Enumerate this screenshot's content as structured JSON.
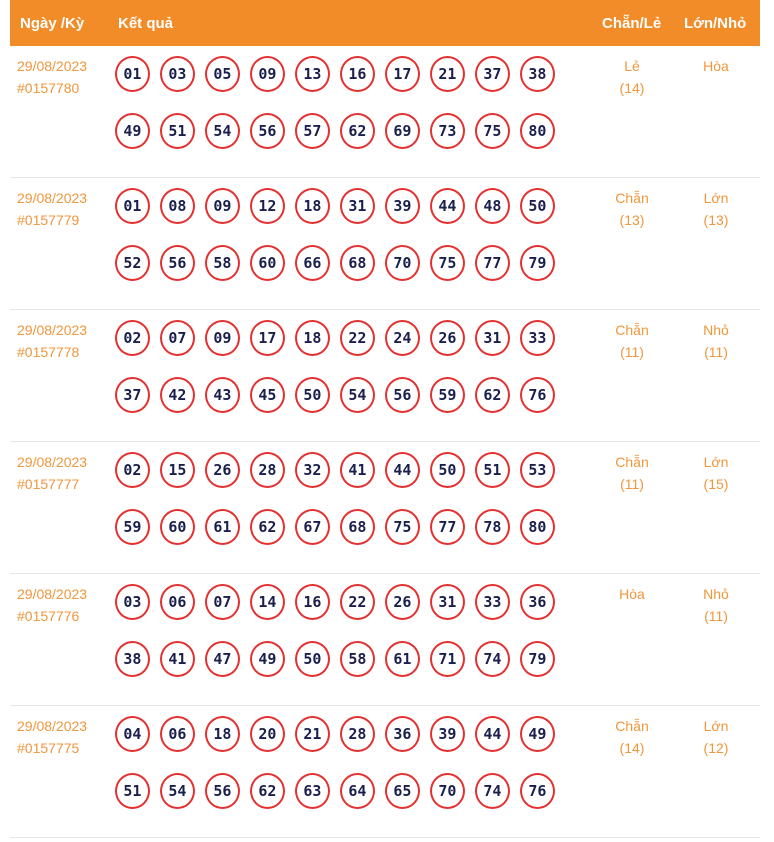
{
  "header": {
    "date_col": "Ngày /Kỳ",
    "result_col": "Kết quả",
    "chanle_col": "Chẵn/Lẻ",
    "lonnho_col": "Lớn/Nhỏ"
  },
  "rows": [
    {
      "date": "29/08/2023",
      "draw": "#0157780",
      "numbers": [
        "01",
        "03",
        "05",
        "09",
        "13",
        "16",
        "17",
        "21",
        "37",
        "38",
        "49",
        "51",
        "54",
        "56",
        "57",
        "62",
        "69",
        "73",
        "75",
        "80"
      ],
      "chanle": "Lẻ",
      "chanle_count": "(14)",
      "lonnho": "Hòa",
      "lonnho_count": ""
    },
    {
      "date": "29/08/2023",
      "draw": "#0157779",
      "numbers": [
        "01",
        "08",
        "09",
        "12",
        "18",
        "31",
        "39",
        "44",
        "48",
        "50",
        "52",
        "56",
        "58",
        "60",
        "66",
        "68",
        "70",
        "75",
        "77",
        "79"
      ],
      "chanle": "Chẵn",
      "chanle_count": "(13)",
      "lonnho": "Lớn",
      "lonnho_count": "(13)"
    },
    {
      "date": "29/08/2023",
      "draw": "#0157778",
      "numbers": [
        "02",
        "07",
        "09",
        "17",
        "18",
        "22",
        "24",
        "26",
        "31",
        "33",
        "37",
        "42",
        "43",
        "45",
        "50",
        "54",
        "56",
        "59",
        "62",
        "76"
      ],
      "chanle": "Chẵn",
      "chanle_count": "(11)",
      "lonnho": "Nhỏ",
      "lonnho_count": "(11)"
    },
    {
      "date": "29/08/2023",
      "draw": "#0157777",
      "numbers": [
        "02",
        "15",
        "26",
        "28",
        "32",
        "41",
        "44",
        "50",
        "51",
        "53",
        "59",
        "60",
        "61",
        "62",
        "67",
        "68",
        "75",
        "77",
        "78",
        "80"
      ],
      "chanle": "Chẵn",
      "chanle_count": "(11)",
      "lonnho": "Lớn",
      "lonnho_count": "(15)"
    },
    {
      "date": "29/08/2023",
      "draw": "#0157776",
      "numbers": [
        "03",
        "06",
        "07",
        "14",
        "16",
        "22",
        "26",
        "31",
        "33",
        "36",
        "38",
        "41",
        "47",
        "49",
        "50",
        "58",
        "61",
        "71",
        "74",
        "79"
      ],
      "chanle": "Hòa",
      "chanle_count": "",
      "lonnho": "Nhỏ",
      "lonnho_count": "(11)"
    },
    {
      "date": "29/08/2023",
      "draw": "#0157775",
      "numbers": [
        "04",
        "06",
        "18",
        "20",
        "21",
        "28",
        "36",
        "39",
        "44",
        "49",
        "51",
        "54",
        "56",
        "62",
        "63",
        "64",
        "65",
        "70",
        "74",
        "76"
      ],
      "chanle": "Chẵn",
      "chanle_count": "(14)",
      "lonnho": "Lớn",
      "lonnho_count": "(12)"
    }
  ],
  "colors": {
    "header_bg": "#f28c28",
    "accent_text": "#f0963c",
    "ball_border": "#e53030",
    "ball_text": "#1a1f4d"
  }
}
